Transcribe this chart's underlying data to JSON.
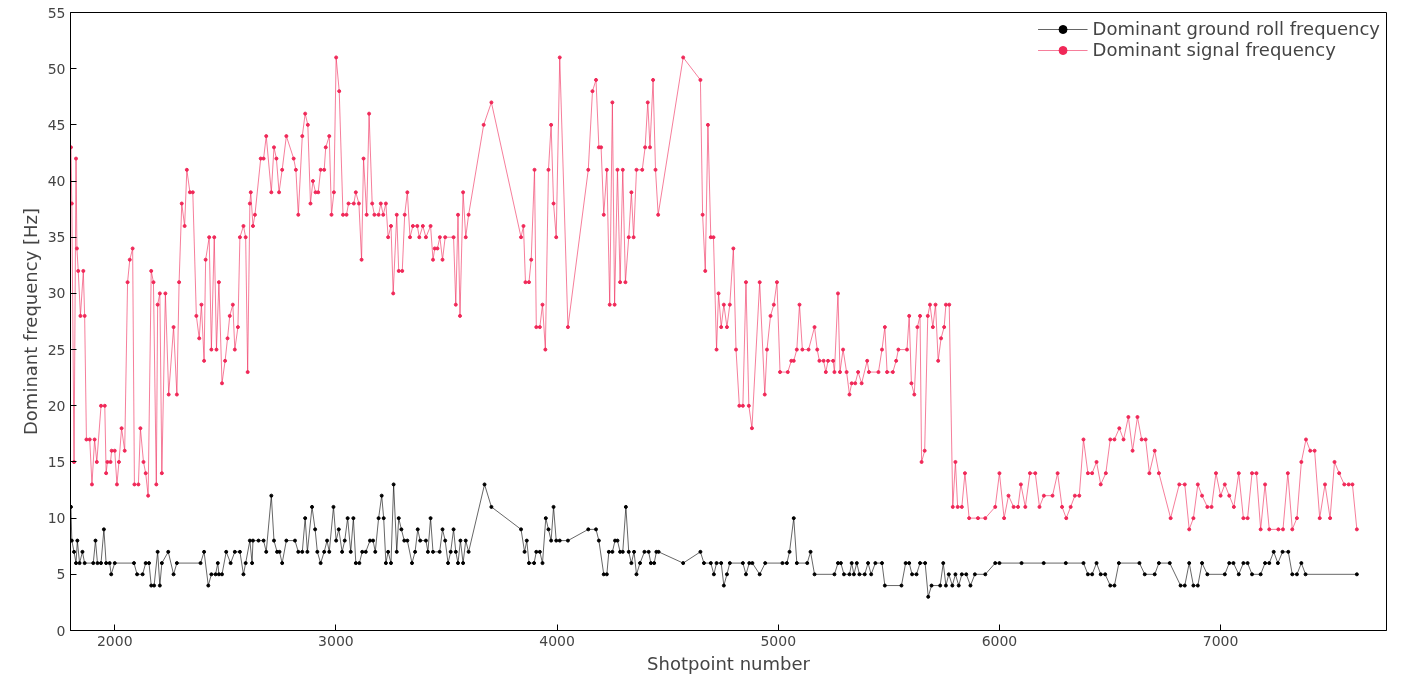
{
  "chart_data": {
    "type": "line",
    "xlabel": "Shotpoint number",
    "ylabel": "Dominant frequency [Hz]",
    "xlim": [
      1800,
      7750
    ],
    "ylim": [
      0,
      55
    ],
    "xticks": [
      2000,
      3000,
      4000,
      5000,
      6000,
      7000
    ],
    "yticks": [
      0,
      5,
      10,
      15,
      20,
      25,
      30,
      35,
      40,
      45,
      50,
      55
    ],
    "grid": false,
    "legend": "top right",
    "marker": "circle",
    "line_style": "solid",
    "series": [
      {
        "name": "Dominant ground roll frequency",
        "color": "#000000",
        "x": [
          1802,
          1806,
          1816,
          1825,
          1831,
          1841,
          1854,
          1864,
          1903,
          1913,
          1922,
          1938,
          1951,
          1961,
          1977,
          1984,
          2000,
          2087,
          2101,
          2126,
          2140,
          2155,
          2165,
          2178,
          2194,
          2204,
          2213,
          2242,
          2266,
          2281,
          2388,
          2404,
          2423,
          2437,
          2456,
          2466,
          2471,
          2485,
          2504,
          2524,
          2543,
          2566,
          2582,
          2592,
          2611,
          2621,
          2625,
          2650,
          2673,
          2685,
          2708,
          2720,
          2734,
          2745,
          2757,
          2776,
          2815,
          2830,
          2848,
          2861,
          2871,
          2892,
          2906,
          2916,
          2931,
          2947,
          2960,
          2970,
          2989,
          3001,
          3013,
          3028,
          3040,
          3053,
          3067,
          3079,
          3090,
          3106,
          3119,
          3135,
          3154,
          3168,
          3178,
          3193,
          3207,
          3216,
          3226,
          3236,
          3249,
          3261,
          3275,
          3284,
          3296,
          3309,
          3323,
          3344,
          3358,
          3370,
          3381,
          3407,
          3416,
          3428,
          3439,
          3469,
          3482,
          3494,
          3507,
          3519,
          3532,
          3542,
          3552,
          3563,
          3575,
          3587,
          3600,
          3672,
          3703,
          3837,
          3853,
          3863,
          3873,
          3896,
          3906,
          3922,
          3934,
          3949,
          3961,
          3973,
          3984,
          3996,
          4012,
          4049,
          4141,
          4176,
          4189,
          4211,
          4225,
          4234,
          4250,
          4262,
          4273,
          4285,
          4297,
          4311,
          4324,
          4336,
          4348,
          4359,
          4375,
          4395,
          4414,
          4424,
          4439,
          4449,
          4459,
          4570,
          4648,
          4664,
          4695,
          4709,
          4721,
          4742,
          4754,
          4768,
          4781,
          4840,
          4854,
          4869,
          4883,
          4916,
          4941,
          5019,
          5039,
          5051,
          5070,
          5084,
          5131,
          5146,
          5164,
          5254,
          5270,
          5283,
          5297,
          5322,
          5332,
          5342,
          5355,
          5367,
          5391,
          5406,
          5420,
          5439,
          5469,
          5482,
          5557,
          5576,
          5592,
          5605,
          5625,
          5641,
          5664,
          5678,
          5693,
          5732,
          5746,
          5758,
          5771,
          5787,
          5801,
          5816,
          5830,
          5850,
          5869,
          5889,
          5936,
          5981,
          6000,
          6100,
          6200,
          6300,
          6380,
          6400,
          6419,
          6439,
          6458,
          6478,
          6501,
          6520,
          6540,
          6633,
          6657,
          6702,
          6721,
          6770,
          6819,
          6838,
          6858,
          6877,
          6897,
          6916,
          6940,
          7019,
          7039,
          7058,
          7082,
          7103,
          7122,
          7142,
          7181,
          7201,
          7220,
          7240,
          7259,
          7280,
          7306,
          7324,
          7345,
          7365,
          7384,
          7616
        ],
        "values": [
          11,
          8,
          7,
          6,
          8,
          6,
          7,
          6,
          6,
          8,
          6,
          6,
          9,
          6,
          6,
          5,
          6,
          6,
          5,
          5,
          6,
          6,
          4,
          4,
          7,
          4,
          6,
          7,
          5,
          6,
          6,
          7,
          4,
          5,
          5,
          6,
          5,
          5,
          7,
          6,
          7,
          7,
          5,
          6,
          8,
          6,
          8,
          8,
          8,
          7,
          12,
          8,
          7,
          7,
          6,
          8,
          8,
          7,
          7,
          10,
          7,
          11,
          9,
          7,
          6,
          7,
          8,
          7,
          11,
          8,
          9,
          7,
          8,
          10,
          7,
          10,
          6,
          6,
          7,
          7,
          8,
          8,
          7,
          10,
          12,
          10,
          6,
          7,
          6,
          13,
          7,
          10,
          9,
          8,
          8,
          6,
          7,
          9,
          8,
          8,
          7,
          10,
          7,
          7,
          9,
          8,
          6,
          7,
          9,
          7,
          6,
          8,
          6,
          8,
          7,
          13,
          11,
          9,
          7,
          8,
          6,
          6,
          7,
          7,
          6,
          10,
          9,
          8,
          11,
          8,
          8,
          8,
          9,
          9,
          8,
          5,
          5,
          7,
          7,
          8,
          8,
          7,
          7,
          11,
          7,
          6,
          7,
          5,
          6,
          7,
          7,
          6,
          6,
          7,
          7,
          6,
          7,
          6,
          6,
          5,
          6,
          6,
          4,
          5,
          6,
          6,
          5,
          6,
          6,
          5,
          6,
          6,
          6,
          7,
          10,
          6,
          6,
          7,
          5,
          5,
          6,
          6,
          5,
          5,
          6,
          5,
          6,
          5,
          5,
          6,
          5,
          6,
          6,
          4,
          4,
          6,
          6,
          5,
          5,
          6,
          6,
          3,
          4,
          4,
          6,
          4,
          5,
          4,
          5,
          4,
          5,
          5,
          4,
          5,
          5,
          6,
          6,
          6,
          6,
          6,
          6,
          5,
          5,
          6,
          5,
          5,
          4,
          4,
          6,
          6,
          5,
          5,
          6,
          6,
          4,
          4,
          6,
          4,
          4,
          6,
          5,
          5,
          6,
          6,
          5,
          6,
          6,
          5,
          5,
          6,
          6,
          7,
          6,
          7,
          7,
          5,
          5,
          6,
          5,
          5
        ]
      },
      {
        "name": "Dominant signal frequency",
        "color": "#f02858",
        "x": [
          1802,
          1806,
          1816,
          1825,
          1829,
          1835,
          1845,
          1858,
          1864,
          1872,
          1887,
          1897,
          1909,
          1919,
          1938,
          1955,
          1961,
          1967,
          1981,
          1986,
          2000,
          2010,
          2019,
          2031,
          2045,
          2058,
          2068,
          2081,
          2089,
          2107,
          2116,
          2130,
          2140,
          2151,
          2165,
          2175,
          2188,
          2194,
          2204,
          2213,
          2229,
          2244,
          2266,
          2281,
          2291,
          2303,
          2316,
          2326,
          2340,
          2353,
          2369,
          2382,
          2392,
          2404,
          2411,
          2427,
          2437,
          2450,
          2460,
          2471,
          2485,
          2499,
          2510,
          2520,
          2534,
          2543,
          2557,
          2566,
          2582,
          2592,
          2601,
          2611,
          2615,
          2625,
          2634,
          2660,
          2673,
          2685,
          2708,
          2720,
          2731,
          2743,
          2757,
          2776,
          2809,
          2819,
          2830,
          2848,
          2861,
          2873,
          2885,
          2896,
          2908,
          2920,
          2931,
          2947,
          2954,
          2970,
          2980,
          2991,
          3001,
          3015,
          3032,
          3048,
          3057,
          3081,
          3090,
          3104,
          3116,
          3125,
          3139,
          3150,
          3164,
          3174,
          3193,
          3203,
          3214,
          3226,
          3236,
          3249,
          3259,
          3275,
          3284,
          3300,
          3311,
          3323,
          3335,
          3348,
          3368,
          3377,
          3393,
          3407,
          3428,
          3439,
          3447,
          3459,
          3470,
          3482,
          3494,
          3532,
          3542,
          3552,
          3561,
          3575,
          3587,
          3600,
          3668,
          3703,
          3837,
          3848,
          3857,
          3873,
          3883,
          3898,
          3906,
          3922,
          3934,
          3947,
          3961,
          3973,
          3984,
          3996,
          4012,
          4049,
          4141,
          4160,
          4176,
          4189,
          4199,
          4211,
          4225,
          4238,
          4250,
          4260,
          4273,
          4285,
          4297,
          4309,
          4324,
          4336,
          4346,
          4359,
          4385,
          4398,
          4410,
          4420,
          4434,
          4445,
          4457,
          4570,
          4648,
          4658,
          4670,
          4682,
          4695,
          4707,
          4721,
          4730,
          4742,
          4754,
          4768,
          4781,
          4797,
          4809,
          4824,
          4840,
          4854,
          4867,
          4881,
          4916,
          4939,
          4949,
          4965,
          4980,
          4994,
          5008,
          5043,
          5059,
          5070,
          5084,
          5096,
          5109,
          5137,
          5164,
          5176,
          5186,
          5205,
          5215,
          5225,
          5248,
          5254,
          5270,
          5279,
          5293,
          5309,
          5322,
          5332,
          5348,
          5361,
          5377,
          5402,
          5410,
          5453,
          5469,
          5482,
          5492,
          5518,
          5533,
          5543,
          5582,
          5592,
          5602,
          5615,
          5629,
          5641,
          5648,
          5662,
          5676,
          5686,
          5699,
          5711,
          5723,
          5736,
          5750,
          5758,
          5773,
          5789,
          5801,
          5811,
          5830,
          5844,
          5863,
          5903,
          5936,
          5981,
          6000,
          6021,
          6041,
          6064,
          6084,
          6097,
          6117,
          6138,
          6162,
          6181,
          6201,
          6240,
          6263,
          6283,
          6302,
          6322,
          6341,
          6361,
          6380,
          6400,
          6419,
          6439,
          6458,
          6481,
          6501,
          6520,
          6542,
          6561,
          6583,
          6602,
          6624,
          6643,
          6661,
          6678,
          6702,
          6721,
          6774,
          6813,
          6838,
          6858,
          6877,
          6897,
          6916,
          6940,
          6959,
          6979,
          7000,
          7019,
          7039,
          7060,
          7082,
          7103,
          7122,
          7142,
          7162,
          7181,
          7201,
          7220,
          7261,
          7282,
          7304,
          7324,
          7345,
          7365,
          7386,
          7405,
          7425,
          7448,
          7472,
          7495,
          7515,
          7536,
          7559,
          7579,
          7596,
          7616
        ],
        "values": [
          43,
          38,
          15,
          42,
          34,
          32,
          28,
          32,
          28,
          17,
          17,
          13,
          17,
          15,
          20,
          20,
          14,
          15,
          15,
          16,
          16,
          13,
          15,
          18,
          16,
          31,
          33,
          34,
          13,
          13,
          18,
          15,
          14,
          12,
          32,
          31,
          13,
          29,
          30,
          14,
          30,
          21,
          27,
          21,
          31,
          38,
          36,
          41,
          39,
          39,
          28,
          26,
          29,
          24,
          33,
          35,
          25,
          35,
          25,
          31,
          22,
          24,
          26,
          28,
          29,
          25,
          27,
          35,
          36,
          35,
          23,
          38,
          39,
          36,
          37,
          42,
          42,
          44,
          39,
          43,
          42,
          39,
          41,
          44,
          42,
          41,
          37,
          44,
          46,
          45,
          38,
          40,
          39,
          39,
          41,
          41,
          43,
          44,
          37,
          39,
          51,
          48,
          37,
          37,
          38,
          38,
          39,
          38,
          33,
          42,
          37,
          46,
          38,
          37,
          37,
          38,
          37,
          38,
          35,
          36,
          30,
          37,
          32,
          32,
          37,
          39,
          35,
          36,
          36,
          35,
          36,
          35,
          36,
          33,
          34,
          34,
          35,
          33,
          35,
          35,
          29,
          37,
          28,
          39,
          35,
          37,
          45,
          47,
          35,
          36,
          31,
          31,
          33,
          41,
          27,
          27,
          29,
          25,
          41,
          45,
          38,
          35,
          51,
          27,
          41,
          48,
          49,
          43,
          43,
          37,
          41,
          29,
          47,
          29,
          41,
          31,
          41,
          31,
          35,
          39,
          35,
          41,
          41,
          43,
          47,
          43,
          49,
          41,
          37,
          51,
          49,
          37,
          32,
          45,
          35,
          35,
          25,
          30,
          27,
          29,
          27,
          29,
          34,
          25,
          20,
          20,
          31,
          20,
          18,
          31,
          21,
          25,
          28,
          29,
          31,
          23,
          23,
          24,
          24,
          25,
          29,
          25,
          25,
          27,
          25,
          24,
          24,
          23,
          24,
          24,
          23,
          30,
          23,
          25,
          23,
          21,
          22,
          22,
          23,
          22,
          24,
          23,
          23,
          25,
          27,
          23,
          23,
          24,
          25,
          25,
          28,
          22,
          21,
          27,
          28,
          15,
          16,
          28,
          29,
          27,
          29,
          24,
          26,
          27,
          29,
          29,
          11,
          15,
          11,
          11,
          14,
          10,
          10,
          10,
          11,
          14,
          10,
          12,
          11,
          11,
          13,
          11,
          14,
          14,
          11,
          12,
          12,
          14,
          11,
          10,
          11,
          12,
          12,
          17,
          14,
          14,
          15,
          13,
          14,
          17,
          17,
          18,
          17,
          19,
          16,
          19,
          17,
          17,
          14,
          16,
          14,
          10,
          13,
          13,
          9,
          10,
          13,
          12,
          11,
          11,
          14,
          12,
          13,
          12,
          11,
          14,
          10,
          10,
          14,
          14,
          9,
          13,
          9,
          9,
          9,
          14,
          9,
          10,
          15,
          17,
          16,
          16,
          10,
          13,
          10,
          15,
          14,
          13,
          13,
          13,
          9
        ]
      }
    ]
  }
}
